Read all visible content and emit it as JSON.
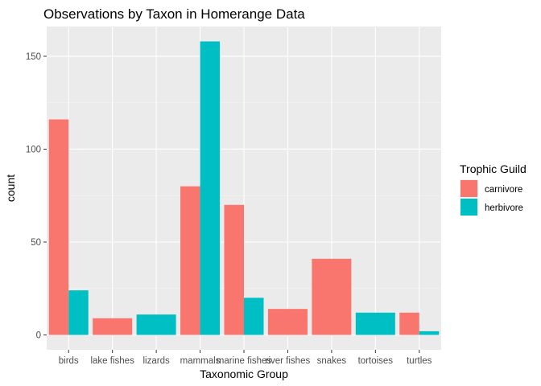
{
  "chart_data": {
    "type": "bar",
    "title": "Observations by Taxon in Homerange Data",
    "xlabel": "Taxonomic Group",
    "ylabel": "count",
    "categories": [
      "birds",
      "lake fishes",
      "lizards",
      "mammals",
      "marine fishes",
      "river fishes",
      "snakes",
      "tortoises",
      "turtles"
    ],
    "series": [
      {
        "name": "carnivore",
        "color": "#F8766D",
        "values": [
          116,
          9,
          null,
          80,
          70,
          14,
          41,
          null,
          12
        ]
      },
      {
        "name": "herbivore",
        "color": "#00BFC4",
        "values": [
          24,
          null,
          11,
          158,
          20,
          null,
          null,
          12,
          2
        ]
      }
    ],
    "yticks": [
      0,
      50,
      100,
      150
    ],
    "ylim": [
      -8,
      166
    ],
    "grid": true,
    "panel_background": "#EBEBEB",
    "legend": {
      "title": "Trophic Guild",
      "position": "right"
    }
  }
}
